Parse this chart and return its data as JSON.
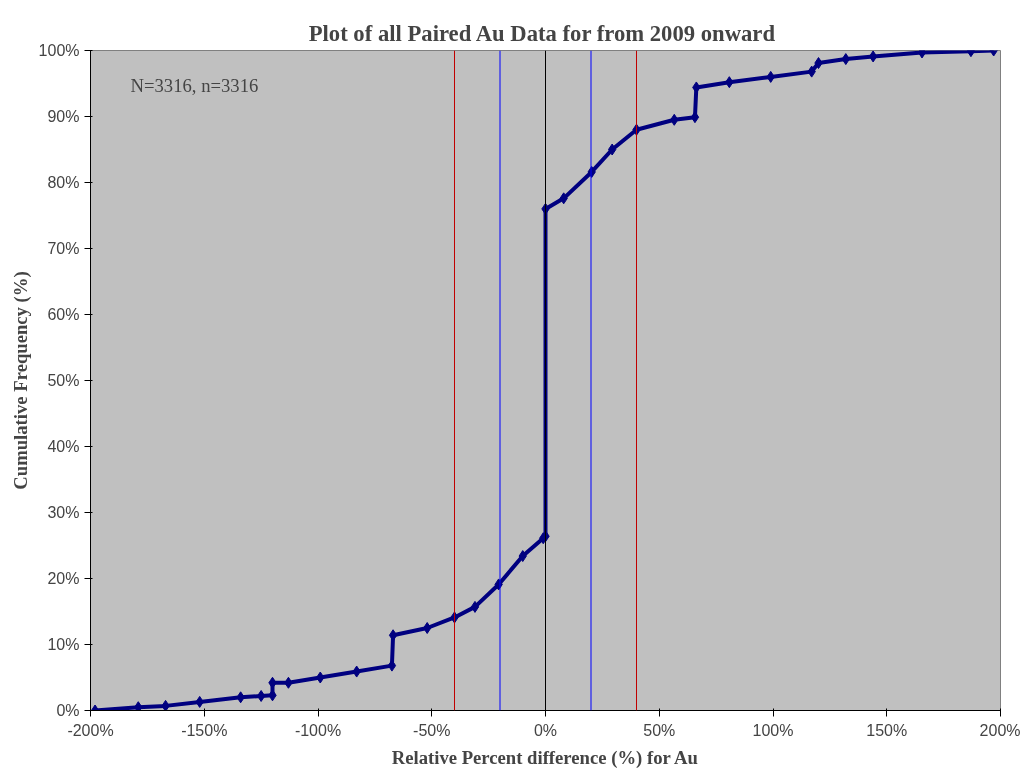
{
  "chart_data": {
    "type": "line",
    "title": "Plot of all  Paired Au Data for from 2009 onward",
    "xlabel": "Relative Percent difference (%) for Au",
    "ylabel": "Cumulative Frequency (%)",
    "annotations": [
      "N=3316, n=3316"
    ],
    "series": [
      {
        "color": "#000080",
        "x": [
          -198,
          -179,
          -167,
          -152,
          -134,
          -125,
          -120,
          -120,
          -113,
          -99,
          -83,
          -67.5,
          -67,
          -52,
          -40,
          -31,
          -20.6,
          -10,
          -1,
          0,
          0,
          8,
          20.3,
          29.3,
          40,
          56.6,
          65.7,
          66.3,
          80.8,
          99,
          117,
          120,
          132,
          144,
          165.5,
          187,
          197
        ],
        "values": [
          0,
          0.5,
          0.7,
          1.3,
          2,
          2.2,
          2.3,
          4.2,
          4.2,
          5,
          5.9,
          6.8,
          11.4,
          12.5,
          14.1,
          15.7,
          19.1,
          23.4,
          26.1,
          26.4,
          76,
          77.6,
          81.6,
          85,
          88,
          89.5,
          89.9,
          94.4,
          95.2,
          96,
          96.8,
          98.1,
          98.7,
          99.1,
          99.7,
          99.9,
          100
        ]
      }
    ],
    "marker": "diamond",
    "grid": false,
    "xlim": [
      -200,
      200
    ],
    "ylim": [
      0,
      100
    ],
    "xticks": [
      {
        "value": -200,
        "label": "-200%"
      },
      {
        "value": -150,
        "label": "-150%"
      },
      {
        "value": -100,
        "label": "-100%"
      },
      {
        "value": -50,
        "label": "-50%"
      },
      {
        "value": 0,
        "label": "0%"
      },
      {
        "value": 50,
        "label": "50%"
      },
      {
        "value": 100,
        "label": "100%"
      },
      {
        "value": 150,
        "label": "150%"
      },
      {
        "value": 200,
        "label": "200%"
      }
    ],
    "yticks": [
      {
        "value": 0,
        "label": "0%"
      },
      {
        "value": 10,
        "label": "10%"
      },
      {
        "value": 20,
        "label": "20%"
      },
      {
        "value": 30,
        "label": "30%"
      },
      {
        "value": 40,
        "label": "40%"
      },
      {
        "value": 50,
        "label": "50%"
      },
      {
        "value": 60,
        "label": "60%"
      },
      {
        "value": 70,
        "label": "70%"
      },
      {
        "value": 80,
        "label": "80%"
      },
      {
        "value": 90,
        "label": "90%"
      },
      {
        "value": 100,
        "label": "100%"
      }
    ],
    "ref_lines": [
      {
        "axis": "x",
        "value": -40,
        "color": "#c00000"
      },
      {
        "axis": "x",
        "value": -20,
        "color": "#0000ff"
      },
      {
        "axis": "x",
        "value": 0,
        "color": "#000000"
      },
      {
        "axis": "x",
        "value": 20,
        "color": "#0000ff"
      },
      {
        "axis": "x",
        "value": 40,
        "color": "#c00000"
      }
    ]
  }
}
